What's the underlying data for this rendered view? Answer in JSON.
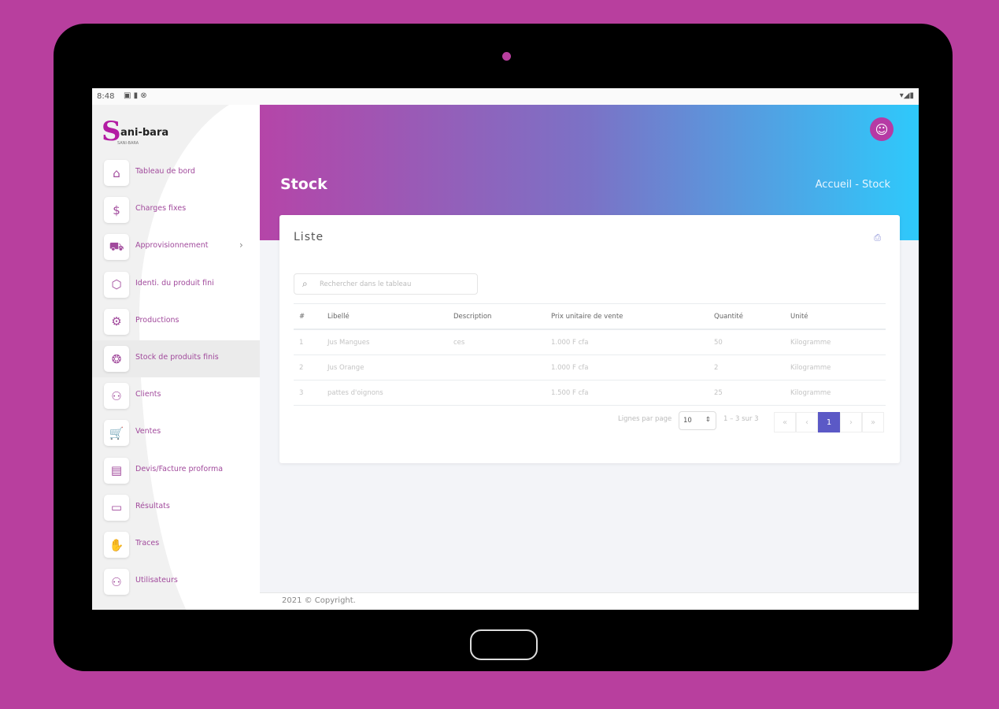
{
  "status_bar": {
    "time": "8:48",
    "icons": [
      "sim-icon",
      "sd-card-icon",
      "sync-icon"
    ],
    "right_icons": [
      "wifi-icon",
      "signal-icon",
      "battery-icon"
    ]
  },
  "sidebar": {
    "logo": {
      "letter": "S",
      "text": "ani-bara",
      "tagline": "SANI-BARA"
    },
    "items": [
      {
        "label": "Tableau de bord",
        "icon": "home-icon",
        "glyph": "⌂"
      },
      {
        "label": "Charges fixes",
        "icon": "dollar-icon",
        "glyph": "$"
      },
      {
        "label": "Approvisionnement",
        "icon": "truck-icon",
        "glyph": "⛟",
        "has_children": true
      },
      {
        "label": "Identi. du produit fini",
        "icon": "box-icon",
        "glyph": "⬡"
      },
      {
        "label": "Productions",
        "icon": "gears-icon",
        "glyph": "⚙"
      },
      {
        "label": "Stock de produits finis",
        "icon": "boxes-icon",
        "glyph": "❂",
        "active": true
      },
      {
        "label": "Clients",
        "icon": "users-icon",
        "glyph": "⚇"
      },
      {
        "label": "Ventes",
        "icon": "cart-icon",
        "glyph": "🛒"
      },
      {
        "label": "Devis/Facture proforma",
        "icon": "invoice-icon",
        "glyph": "▤"
      },
      {
        "label": "Résultats",
        "icon": "cash-icon",
        "glyph": "▭"
      },
      {
        "label": "Traces",
        "icon": "hand-icon",
        "glyph": "✋"
      },
      {
        "label": "Utilisateurs",
        "icon": "users-icon",
        "glyph": "⚇"
      }
    ],
    "chevron": "›"
  },
  "header": {
    "title": "Stock",
    "breadcrumb": "Accueil  -  Stock",
    "avatar_icon": "user-icon"
  },
  "card": {
    "title": "Liste",
    "search_placeholder": "Rechercher dans le tableau",
    "columns": [
      "#",
      "Libellé",
      "Description",
      "Prix unitaire de vente",
      "Quantité",
      "Unité"
    ],
    "rows": [
      [
        "1",
        "Jus Mangues",
        "ces",
        "1.000 F cfa",
        "50",
        "Kilogramme"
      ],
      [
        "2",
        "Jus Orange",
        "",
        "1.000 F cfa",
        "2",
        "Kilogramme"
      ],
      [
        "3",
        "pattes d'oignons",
        "",
        "1.500 F cfa",
        "25",
        "Kilogramme"
      ]
    ],
    "pagination": {
      "rows_per_page_label": "Lignes par page",
      "rows_per_page": "10",
      "range": "1 – 3 sur 3",
      "buttons": [
        "«",
        "‹",
        "1",
        "›",
        "»"
      ],
      "current_page": 1
    }
  },
  "footer": {
    "text": "2021 © Copyright."
  },
  "colors": {
    "brand": "#b63aa4",
    "gradient_start": "#b545a8",
    "gradient_end": "#2ec9fb",
    "active_page": "#5b59c6"
  }
}
